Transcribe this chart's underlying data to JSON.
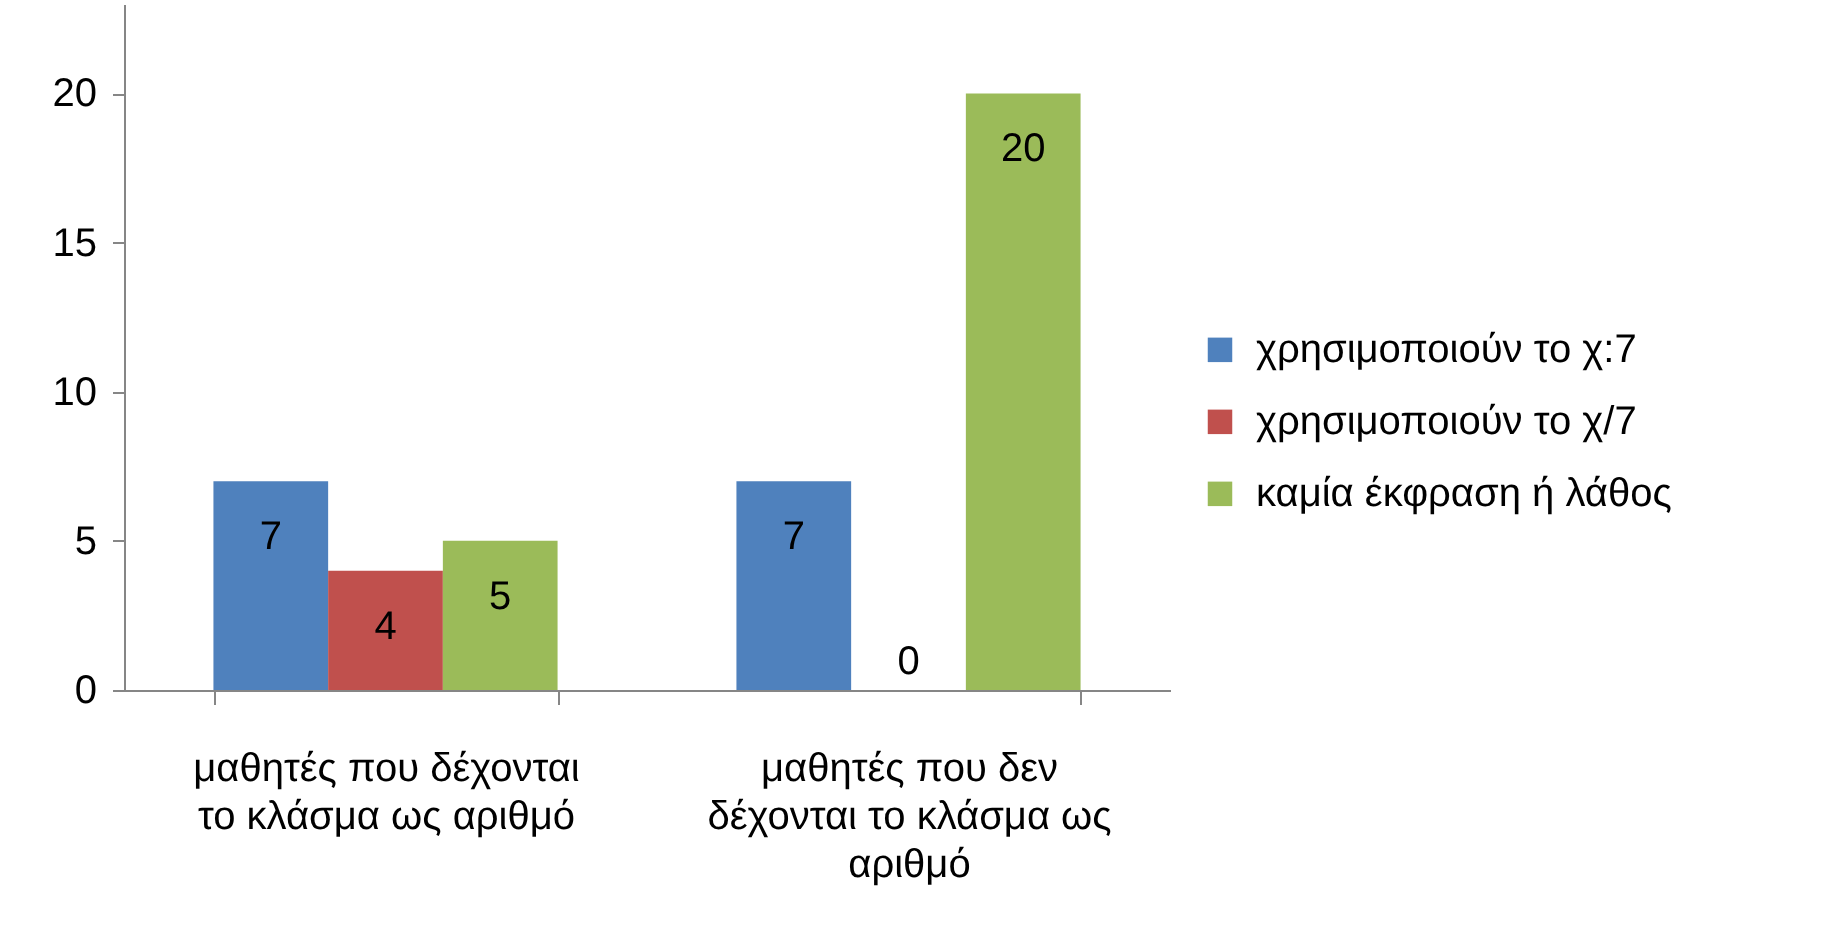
{
  "chart_data": {
    "type": "bar",
    "categories": [
      "μαθητές που δέχονται το κλάσμα ως αριθμό",
      "μαθητές που δεν δέχονται το κλάσμα ως αριθμό"
    ],
    "series": [
      {
        "name": "χρησιμοποιούν το χ:7",
        "color": "#4f81bd",
        "values": [
          7,
          7
        ]
      },
      {
        "name": "χρησιμοποιούν το χ/7",
        "color": "#c0504d",
        "values": [
          4,
          0
        ]
      },
      {
        "name": "καμία έκφραση ή λάθος",
        "color": "#9bbb59",
        "values": [
          5,
          20
        ]
      }
    ],
    "ylim": [
      0,
      23
    ],
    "yticks": [
      0,
      5,
      10,
      15,
      20
    ],
    "grid": false,
    "legend": "right",
    "data_labels": true
  }
}
